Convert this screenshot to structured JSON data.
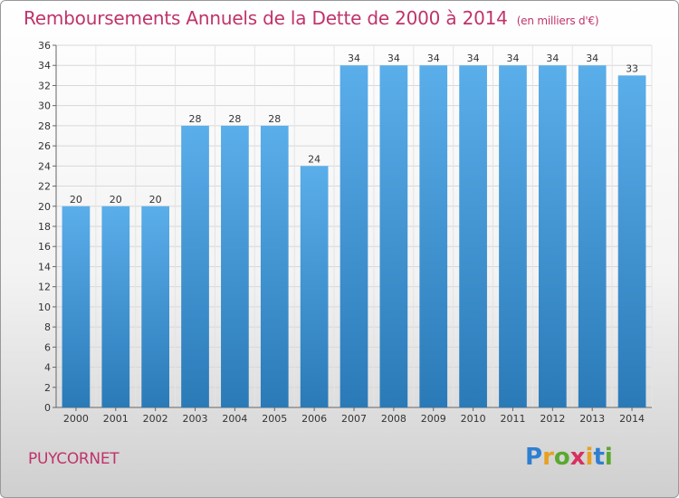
{
  "header": {
    "title": "Remboursements Annuels de la Dette de 2000 à 2014",
    "unit": "(en milliers d'€)"
  },
  "footer": {
    "city": "PUYCORNET",
    "logo_letters": [
      "P",
      "r",
      "o",
      "x",
      "i",
      "t",
      "i"
    ],
    "logo_colors": [
      "#2f7fd0",
      "#e8a020",
      "#5aa830",
      "#d83060",
      "#e8a020",
      "#2f7fd0",
      "#5aa830"
    ]
  },
  "chart_data": {
    "type": "bar",
    "title": "Remboursements Annuels de la Dette de 2000 à 2014",
    "categories": [
      "2000",
      "2001",
      "2002",
      "2003",
      "2004",
      "2005",
      "2006",
      "2007",
      "2008",
      "2009",
      "2010",
      "2011",
      "2012",
      "2013",
      "2014"
    ],
    "values": [
      20,
      20,
      20,
      28,
      28,
      28,
      24,
      34,
      34,
      34,
      34,
      34,
      34,
      34,
      33
    ],
    "ylim": [
      0,
      36
    ],
    "yticks": [
      0,
      2,
      4,
      6,
      8,
      10,
      12,
      14,
      16,
      18,
      20,
      22,
      24,
      26,
      28,
      30,
      32,
      34,
      36
    ],
    "grid": true,
    "bar_color_top": "#5aaeea",
    "bar_color_bottom": "#2a7ab8"
  }
}
